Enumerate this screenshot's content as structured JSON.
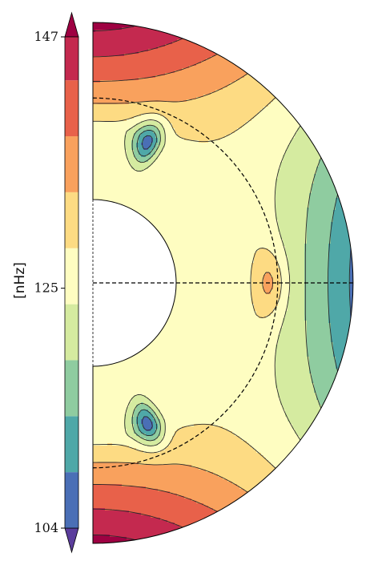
{
  "chart_data": {
    "type": "heatmap",
    "title": "",
    "colorbar": {
      "label": "[nHz]",
      "ticks": [
        {
          "value": 147,
          "label": "147"
        },
        {
          "value": 125,
          "label": "125"
        },
        {
          "value": 104,
          "label": "104"
        }
      ],
      "range": [
        104,
        147
      ],
      "extend": "both",
      "levels": [
        104.0,
        108.9,
        113.8,
        118.7,
        123.6,
        128.5,
        133.4,
        138.3,
        143.2,
        148.0
      ],
      "colors": [
        "#5b3d9c",
        "#4a6fb6",
        "#4fa8a8",
        "#8fcca0",
        "#d5eba0",
        "#fefdc1",
        "#fddb83",
        "#f9a15d",
        "#e8614a",
        "#c4294f",
        "#9e0142"
      ]
    },
    "domain": {
      "shape": "meridional half-disk",
      "inner_radius_fraction": 0.32,
      "tachocline_radius_fraction": 0.71,
      "equator": "dashed horizontal line"
    },
    "grid": false
  }
}
